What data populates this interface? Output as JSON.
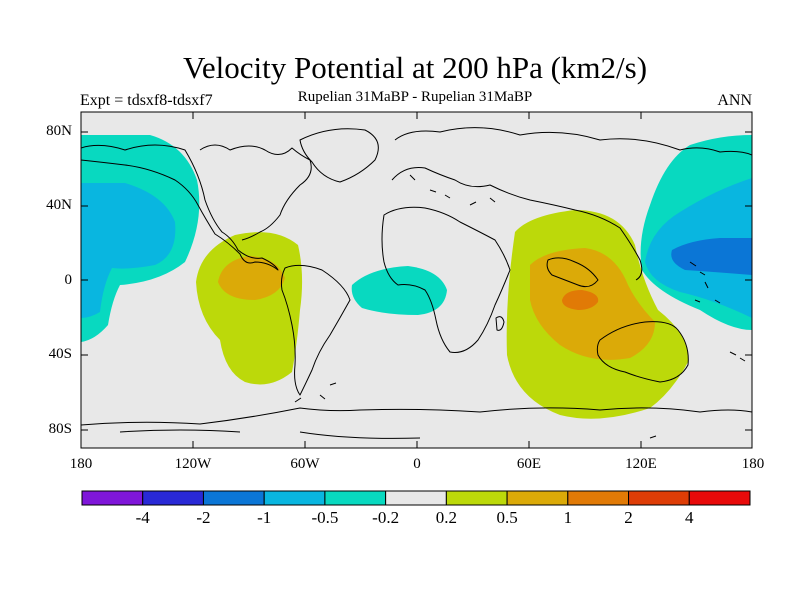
{
  "title": "Velocity Potential at 200 hPa (km2/s)",
  "subtitle": "Rupelian  31MaBP - Rupelian  31MaBP",
  "experiment": "Expt = tdsxf8-tdsxf7",
  "season": "ANN",
  "lat_labels": [
    "80N",
    "40N",
    "0",
    "40S",
    "80S"
  ],
  "lon_labels": [
    "180",
    "120W",
    "60W",
    "0",
    "60E",
    "120E",
    "180"
  ],
  "colorbar": {
    "colors": [
      "#7f16d9",
      "#2929d6",
      "#0b76d6",
      "#09b6e0",
      "#08d9c0",
      "#e8e8e8",
      "#bcd90a",
      "#dbaa08",
      "#e17a06",
      "#de3d06",
      "#e80a0a"
    ],
    "labels": [
      "-4",
      "-2",
      "-1",
      "-0.5",
      "-0.2",
      "0.2",
      "0.5",
      "1",
      "2",
      "4"
    ]
  }
}
